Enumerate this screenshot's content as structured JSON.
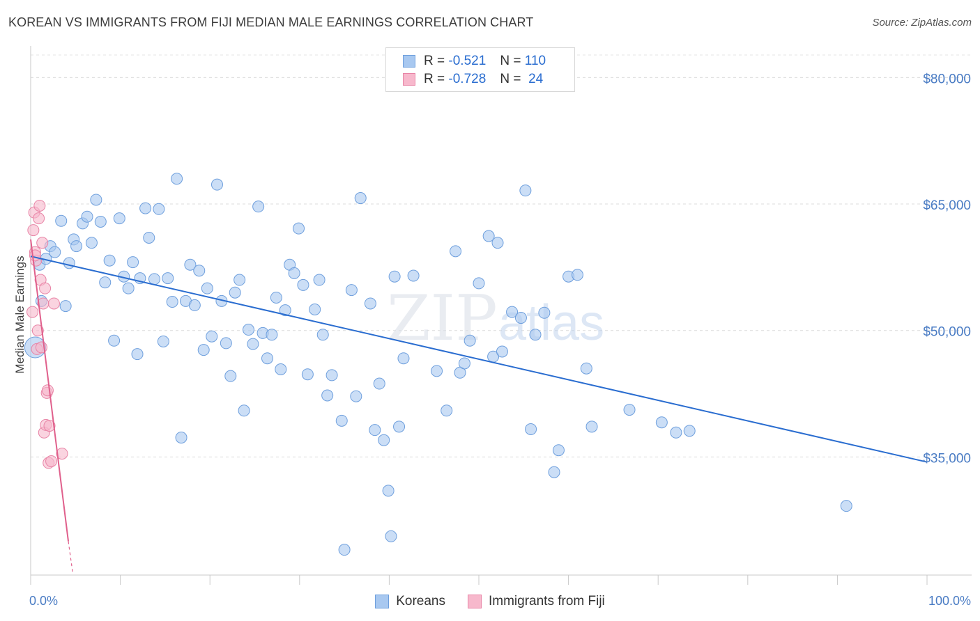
{
  "title": "KOREAN VS IMMIGRANTS FROM FIJI MEDIAN MALE EARNINGS CORRELATION CHART",
  "source": "Source: ZipAtlas.com",
  "watermark": {
    "zip": "ZIP",
    "atlas": "atlas"
  },
  "legend": {
    "r_label": "R =",
    "n_label": "N =",
    "rows": [
      {
        "r": "-0.521",
        "n": "110",
        "color": "#a8c8f0",
        "edge": "#6e9fdd"
      },
      {
        "r": "-0.728",
        "n": "24",
        "color": "#f7b8cc",
        "edge": "#e884a6"
      }
    ]
  },
  "bottom_legend": {
    "koreans": "Koreans",
    "fiji": "Immigrants from Fiji"
  },
  "chart_data": {
    "type": "scatter",
    "title": "KOREAN VS IMMIGRANTS FROM FIJI MEDIAN MALE EARNINGS CORRELATION CHART",
    "xlabel": "",
    "ylabel": "Median Male Earnings",
    "xlim": [
      0,
      100
    ],
    "ylim": [
      21000,
      83000
    ],
    "x_tick_labels": {
      "min": "0.0%",
      "max": "100.0%"
    },
    "y_ticks": [
      {
        "value": 35000,
        "label": "$35,000"
      },
      {
        "value": 50000,
        "label": "$50,000"
      },
      {
        "value": 65000,
        "label": "$65,000"
      },
      {
        "value": 80000,
        "label": "$80,000"
      }
    ],
    "grid": true,
    "series": [
      {
        "name": "Koreans",
        "color": "#a8c8f0",
        "edge": "#6e9fdd",
        "trend": {
          "x0": 0,
          "y0": 58800,
          "x1": 100,
          "y1": 34400,
          "color": "#2a6dd0"
        },
        "points": [
          [
            0.5,
            48000
          ],
          [
            1.0,
            57800
          ],
          [
            1.2,
            53500
          ],
          [
            1.7,
            58500
          ],
          [
            2.2,
            60000
          ],
          [
            2.7,
            59300
          ],
          [
            3.4,
            63000
          ],
          [
            3.9,
            52900
          ],
          [
            4.3,
            58000
          ],
          [
            4.8,
            60800
          ],
          [
            5.1,
            60000
          ],
          [
            5.8,
            62700
          ],
          [
            6.3,
            63500
          ],
          [
            6.8,
            60400
          ],
          [
            7.3,
            65500
          ],
          [
            7.8,
            62900
          ],
          [
            8.3,
            55700
          ],
          [
            8.8,
            58300
          ],
          [
            9.3,
            48800
          ],
          [
            9.9,
            63300
          ],
          [
            10.4,
            56400
          ],
          [
            10.9,
            55000
          ],
          [
            11.4,
            58100
          ],
          [
            11.9,
            47200
          ],
          [
            12.2,
            56200
          ],
          [
            12.8,
            64500
          ],
          [
            13.2,
            61000
          ],
          [
            13.8,
            56100
          ],
          [
            14.3,
            64400
          ],
          [
            14.8,
            48700
          ],
          [
            15.3,
            56200
          ],
          [
            15.8,
            53400
          ],
          [
            16.3,
            68000
          ],
          [
            16.8,
            37300
          ],
          [
            17.3,
            53500
          ],
          [
            17.8,
            57800
          ],
          [
            18.3,
            53000
          ],
          [
            18.8,
            57100
          ],
          [
            19.3,
            47700
          ],
          [
            19.7,
            55000
          ],
          [
            20.2,
            49300
          ],
          [
            20.8,
            67300
          ],
          [
            21.3,
            53500
          ],
          [
            21.8,
            48500
          ],
          [
            22.3,
            44600
          ],
          [
            22.8,
            54500
          ],
          [
            23.3,
            56000
          ],
          [
            23.8,
            40500
          ],
          [
            24.3,
            50100
          ],
          [
            24.8,
            48400
          ],
          [
            25.4,
            64700
          ],
          [
            25.9,
            49700
          ],
          [
            26.4,
            46700
          ],
          [
            26.9,
            49500
          ],
          [
            27.4,
            53900
          ],
          [
            27.9,
            45400
          ],
          [
            28.4,
            52400
          ],
          [
            28.9,
            57800
          ],
          [
            29.4,
            56800
          ],
          [
            29.9,
            62100
          ],
          [
            30.4,
            55400
          ],
          [
            30.9,
            44800
          ],
          [
            31.7,
            52500
          ],
          [
            32.2,
            56000
          ],
          [
            32.6,
            49500
          ],
          [
            33.1,
            42300
          ],
          [
            33.6,
            44700
          ],
          [
            34.7,
            39300
          ],
          [
            35.8,
            54800
          ],
          [
            36.3,
            42200
          ],
          [
            36.8,
            65700
          ],
          [
            37.9,
            53200
          ],
          [
            38.4,
            38200
          ],
          [
            38.9,
            43700
          ],
          [
            39.4,
            37000
          ],
          [
            39.9,
            31000
          ],
          [
            40.2,
            25600
          ],
          [
            40.6,
            56400
          ],
          [
            41.1,
            38600
          ],
          [
            41.6,
            46700
          ],
          [
            42.7,
            56500
          ],
          [
            45.3,
            45200
          ],
          [
            46.4,
            40500
          ],
          [
            47.4,
            59400
          ],
          [
            47.9,
            45000
          ],
          [
            48.4,
            46100
          ],
          [
            49.0,
            48800
          ],
          [
            50.0,
            55600
          ],
          [
            51.1,
            61200
          ],
          [
            51.6,
            46900
          ],
          [
            52.1,
            60400
          ],
          [
            52.6,
            47500
          ],
          [
            53.7,
            52200
          ],
          [
            54.7,
            51500
          ],
          [
            55.2,
            66600
          ],
          [
            55.8,
            38300
          ],
          [
            56.3,
            49500
          ],
          [
            57.3,
            52100
          ],
          [
            58.4,
            33200
          ],
          [
            58.9,
            35800
          ],
          [
            60.0,
            56400
          ],
          [
            61.0,
            56600
          ],
          [
            62.0,
            45500
          ],
          [
            62.6,
            38600
          ],
          [
            66.8,
            40600
          ],
          [
            70.4,
            39100
          ],
          [
            72.0,
            37900
          ],
          [
            73.5,
            38100
          ],
          [
            91.0,
            29200
          ],
          [
            35.0,
            24000
          ]
        ]
      },
      {
        "name": "Immigrants from Fiji",
        "color": "#f7b8cc",
        "edge": "#e884a6",
        "trend": {
          "x0": 0,
          "y0": 60800,
          "x1": 4.2,
          "y1": 25000,
          "color": "#e0608c"
        },
        "trend_dashed_to": {
          "x": 4.7,
          "y": 21200
        },
        "points": [
          [
            0.2,
            52200
          ],
          [
            0.3,
            61900
          ],
          [
            0.4,
            64000
          ],
          [
            0.5,
            59300
          ],
          [
            0.6,
            58300
          ],
          [
            0.7,
            47800
          ],
          [
            0.8,
            50000
          ],
          [
            0.9,
            63300
          ],
          [
            1.0,
            64800
          ],
          [
            1.1,
            56000
          ],
          [
            1.2,
            48000
          ],
          [
            1.3,
            60400
          ],
          [
            1.4,
            53200
          ],
          [
            1.5,
            37900
          ],
          [
            1.6,
            55000
          ],
          [
            1.7,
            38800
          ],
          [
            1.8,
            42600
          ],
          [
            1.9,
            42900
          ],
          [
            2.0,
            34300
          ],
          [
            2.1,
            38700
          ],
          [
            2.3,
            34500
          ],
          [
            2.6,
            53200
          ],
          [
            3.5,
            35400
          ],
          [
            0.5,
            58900
          ]
        ]
      }
    ]
  }
}
